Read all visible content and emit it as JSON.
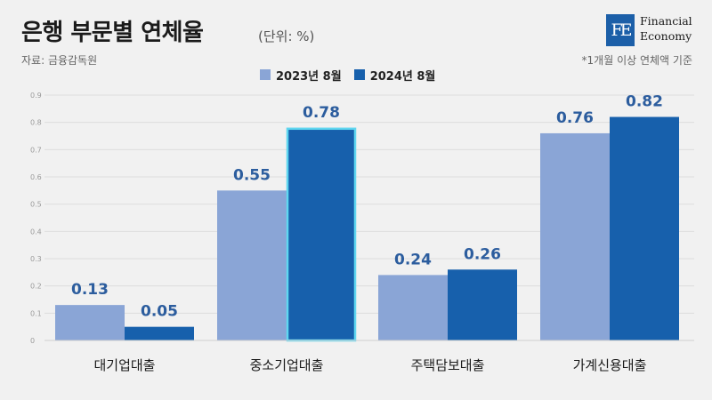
{
  "header": {
    "title": "은행 부문별 연체율",
    "unit": "(단위: %)",
    "source": "자료: 금융감독원",
    "note": "*1개월 이상 연체액 기준"
  },
  "logo": {
    "mark": "FE",
    "line1": "Financial",
    "line2": "Economy"
  },
  "colors": {
    "series1": "#8aa5d6",
    "series2": "#1760ac",
    "highlight_border": "#5fd6f0",
    "value_label": "#2c5d9e",
    "grid": "#dddddd"
  },
  "chart_data": {
    "type": "bar",
    "title": "은행 부문별 연체율",
    "categories": [
      "대기업대출",
      "중소기업대출",
      "주택담보대출",
      "가계신용대출"
    ],
    "series": [
      {
        "name": "2023년 8월",
        "values": [
          0.13,
          0.55,
          0.24,
          0.76
        ]
      },
      {
        "name": "2024년 8월",
        "values": [
          0.05,
          0.78,
          0.26,
          0.82
        ]
      }
    ],
    "value_labels": [
      [
        "0.13",
        "0.55",
        "0.24",
        "0.76"
      ],
      [
        "0.05",
        "0.78",
        "0.26",
        "0.82"
      ]
    ],
    "y_ticks": [
      "0",
      "0.1",
      "0.2",
      "0.3",
      "0.4",
      "0.5",
      "0.6",
      "0.7",
      "0.8",
      "0.9"
    ],
    "ylim": [
      0,
      0.9
    ],
    "grid": true,
    "legend_position": "top-center",
    "highlighted_bar": {
      "series": 1,
      "category": 1
    }
  }
}
